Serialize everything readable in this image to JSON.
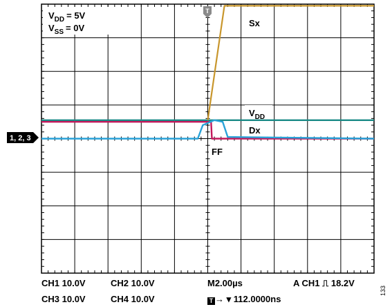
{
  "chart_data": {
    "type": "line",
    "title": "",
    "xlabel": "",
    "ylabel": "",
    "grid": true,
    "grid_divisions": {
      "x": 10,
      "y": 8
    },
    "time_per_div_us": 2.0,
    "volts_per_div": 10.0,
    "xlim_us": [
      -10,
      10
    ],
    "ylim_div": [
      -4,
      4
    ],
    "series": [
      {
        "name": "Sx",
        "color": "#c8962c",
        "points": [
          [
            0.0,
            0.55
          ],
          [
            1.0,
            3.95
          ],
          [
            10.0,
            3.95
          ]
        ]
      },
      {
        "name": "VDD",
        "color": "#1a8a86",
        "points": [
          [
            -10.0,
            0.55
          ],
          [
            10.0,
            0.55
          ]
        ]
      },
      {
        "name": "Dx",
        "color": "#29a2d8",
        "points": [
          [
            -10.0,
            0.0
          ],
          [
            -0.6,
            0.0
          ],
          [
            -0.3,
            0.4
          ],
          [
            0.4,
            0.55
          ],
          [
            0.9,
            0.5
          ],
          [
            1.2,
            0.05
          ],
          [
            10.0,
            0.0
          ]
        ]
      },
      {
        "name": "FF",
        "color": "#c2185b",
        "points": [
          [
            -10.0,
            0.5
          ],
          [
            0.2,
            0.5
          ],
          [
            0.25,
            0.0
          ],
          [
            10.0,
            0.0
          ]
        ]
      }
    ],
    "annotations": {
      "supply_v1_main": "V",
      "supply_v1_sub": "DD",
      "supply_v1_value": "= 5V",
      "supply_v2_main": "V",
      "supply_v2_sub": "SS",
      "supply_v2_value": "= 0V",
      "sx_label": "Sx",
      "vdd_label_main": "V",
      "vdd_label_sub": "DD",
      "dx_label": "Dx",
      "ff_label": "FF",
      "ground_marker": "1, 2, 3"
    }
  },
  "footer": {
    "ch1": "CH1  10.0V",
    "ch2": "CH2  10.0V",
    "ch3": "CH3  10.0V",
    "ch4": "CH4  10.0V",
    "timebase": "M2.00µs",
    "trigger": "A  CH1 ⎍ 18.2V",
    "trigger_position": "→ ▾ 112.0000ns"
  },
  "figure_number": "133",
  "colors": {
    "sx": "#c8962c",
    "vdd": "#1a8a86",
    "dx": "#29a2d8",
    "ff": "#c2185b",
    "trigger": "#8a8a8a"
  }
}
